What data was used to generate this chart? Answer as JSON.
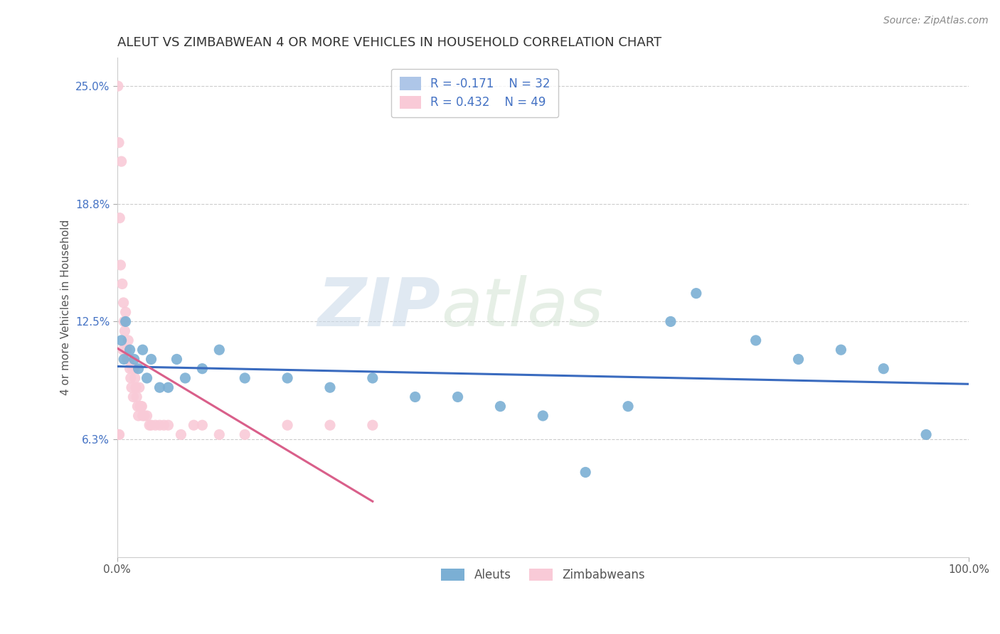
{
  "title": "ALEUT VS ZIMBABWEAN 4 OR MORE VEHICLES IN HOUSEHOLD CORRELATION CHART",
  "source": "Source: ZipAtlas.com",
  "ylabel": "4 or more Vehicles in Household",
  "legend_rn": [
    {
      "R": -0.171,
      "N": 32,
      "color": "#aec6e8"
    },
    {
      "R": 0.432,
      "N": 49,
      "color": "#f9cad7"
    }
  ],
  "bottom_legend": [
    "Aleuts",
    "Zimbabweans"
  ],
  "aleut_x": [
    0.5,
    0.8,
    1.0,
    1.5,
    2.0,
    2.5,
    3.0,
    3.5,
    4.0,
    5.0,
    6.0,
    7.0,
    8.0,
    10.0,
    12.0,
    15.0,
    20.0,
    25.0,
    30.0,
    35.0,
    40.0,
    45.0,
    50.0,
    55.0,
    60.0,
    65.0,
    68.0,
    75.0,
    80.0,
    85.0,
    90.0,
    95.0
  ],
  "aleut_y": [
    11.5,
    10.5,
    12.5,
    11.0,
    10.5,
    10.0,
    11.0,
    9.5,
    10.5,
    9.0,
    9.0,
    10.5,
    9.5,
    10.0,
    11.0,
    9.5,
    9.5,
    9.0,
    9.5,
    8.5,
    8.5,
    8.0,
    7.5,
    4.5,
    8.0,
    12.5,
    14.0,
    11.5,
    10.5,
    11.0,
    10.0,
    6.5
  ],
  "zimbab_x": [
    0.1,
    0.2,
    0.3,
    0.4,
    0.5,
    0.6,
    0.7,
    0.75,
    0.8,
    0.9,
    1.0,
    1.1,
    1.2,
    1.3,
    1.4,
    1.5,
    1.6,
    1.7,
    1.8,
    1.9,
    2.0,
    2.1,
    2.2,
    2.3,
    2.4,
    2.5,
    2.6,
    2.7,
    2.8,
    2.9,
    3.0,
    3.2,
    3.5,
    3.8,
    4.0,
    4.5,
    5.0,
    5.5,
    6.0,
    7.5,
    9.0,
    10.0,
    12.0,
    15.0,
    20.0,
    25.0,
    30.0,
    0.15,
    0.25
  ],
  "zimbab_y": [
    25.0,
    22.0,
    18.0,
    15.5,
    21.0,
    14.5,
    11.0,
    13.5,
    12.5,
    12.0,
    13.0,
    11.0,
    10.5,
    11.5,
    10.5,
    10.0,
    9.5,
    9.0,
    10.0,
    8.5,
    10.0,
    9.5,
    9.0,
    8.5,
    8.0,
    7.5,
    9.0,
    8.0,
    8.0,
    8.0,
    7.5,
    7.5,
    7.5,
    7.0,
    7.0,
    7.0,
    7.0,
    7.0,
    7.0,
    6.5,
    7.0,
    7.0,
    6.5,
    6.5,
    7.0,
    7.0,
    7.0,
    6.5,
    6.5
  ],
  "xlim": [
    0,
    100
  ],
  "ylim": [
    0,
    26.5
  ],
  "yticks": [
    6.25,
    12.5,
    18.75,
    25.0
  ],
  "ytick_labels": [
    "6.3%",
    "12.5%",
    "18.8%",
    "25.0%"
  ],
  "xticks": [
    0,
    100
  ],
  "xtick_labels": [
    "0.0%",
    "100.0%"
  ],
  "aleut_dot_color": "#7bafd4",
  "zimbab_dot_color": "#f9cad7",
  "aleut_line_color": "#3a6bbf",
  "zimbab_line_color": "#d95f8a",
  "watermark_zip": "ZIP",
  "watermark_atlas": "atlas",
  "title_fontsize": 13,
  "source_fontsize": 10,
  "tick_fontsize": 11,
  "label_fontsize": 11
}
